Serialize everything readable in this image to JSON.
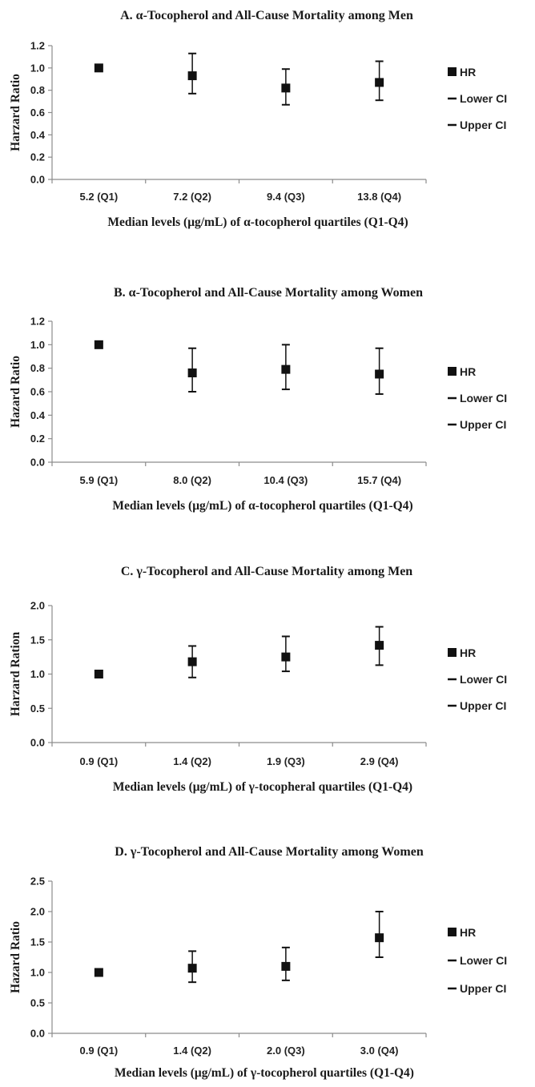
{
  "chart_data": [
    {
      "type": "scatter",
      "title": "A. α-Tocopherol and All-Cause Mortality among Men",
      "xlabel": "Median levels (μg/mL) of α-tocopherol quartiles  (Q1-Q4)",
      "ylabel": "Harzard Ratio",
      "categories": [
        "5.2 (Q1)",
        "7.2 (Q2)",
        "9.4 (Q3)",
        "13.8 (Q4)"
      ],
      "ylim": [
        0,
        1.2
      ],
      "yticks": [
        "0.0",
        "0.2",
        "0.4",
        "0.6",
        "0.8",
        "1.0",
        "1.2"
      ],
      "series": [
        {
          "name": "HR",
          "values": [
            1.0,
            0.93,
            0.82,
            0.87
          ]
        },
        {
          "name": "Lower CI",
          "values": [
            null,
            0.77,
            0.67,
            0.71
          ]
        },
        {
          "name": "Upper CI",
          "values": [
            null,
            1.13,
            0.99,
            1.06
          ]
        }
      ],
      "legend": "right",
      "grid": false
    },
    {
      "type": "scatter",
      "title": "B. α-Tocopherol and All-Cause Mortality among Women",
      "xlabel": "Median levels (μg/mL) of α-tocopherol quartiles  (Q1-Q4)",
      "ylabel": "Hazard Ratio",
      "categories": [
        "5.9 (Q1)",
        "8.0 (Q2)",
        "10.4 (Q3)",
        "15.7 (Q4)"
      ],
      "ylim": [
        0,
        1.2
      ],
      "yticks": [
        "0.0",
        "0.2",
        "0.4",
        "0.6",
        "0.8",
        "1.0",
        "1.2"
      ],
      "series": [
        {
          "name": "HR",
          "values": [
            1.0,
            0.76,
            0.79,
            0.75
          ]
        },
        {
          "name": "Lower CI",
          "values": [
            null,
            0.6,
            0.62,
            0.58
          ]
        },
        {
          "name": "Upper CI",
          "values": [
            null,
            0.97,
            1.0,
            0.97
          ]
        }
      ],
      "legend": "right",
      "grid": false
    },
    {
      "type": "scatter",
      "title": "C. γ-Tocopherol and All-Cause Mortality among Men",
      "xlabel": "Median levels (μg/mL) of γ-tocopheral quartiles  (Q1-Q4)",
      "ylabel": "Harzard Ration",
      "categories": [
        "0.9 (Q1)",
        "1.4 (Q2)",
        "1.9 (Q3)",
        "2.9 (Q4)"
      ],
      "ylim": [
        0,
        2.0
      ],
      "yticks": [
        "0.0",
        "0.5",
        "1.0",
        "1.5",
        "2.0"
      ],
      "series": [
        {
          "name": "HR",
          "values": [
            1.0,
            1.18,
            1.25,
            1.42
          ]
        },
        {
          "name": "Lower CI",
          "values": [
            null,
            0.95,
            1.04,
            1.13
          ]
        },
        {
          "name": "Upper CI",
          "values": [
            null,
            1.41,
            1.55,
            1.69
          ]
        }
      ],
      "legend": "right",
      "grid": false
    },
    {
      "type": "scatter",
      "title": "D. γ-Tocopherol and All-Cause Mortality among Women",
      "xlabel": "Median levels (μg/mL) of γ-tocopherol quartiles  (Q1-Q4)",
      "ylabel": "Hazard Ratio",
      "categories": [
        "0.9 (Q1)",
        "1.4 (Q2)",
        "2.0 (Q3)",
        "3.0 (Q4)"
      ],
      "ylim": [
        0,
        2.5
      ],
      "yticks": [
        "0.0",
        "0.5",
        "1.0",
        "1.5",
        "2.0",
        "2.5"
      ],
      "series": [
        {
          "name": "HR",
          "values": [
            1.0,
            1.07,
            1.1,
            1.57
          ]
        },
        {
          "name": "Lower CI",
          "values": [
            null,
            0.84,
            0.87,
            1.25
          ]
        },
        {
          "name": "Upper CI",
          "values": [
            null,
            1.35,
            1.41,
            2.0
          ]
        }
      ],
      "legend": "right",
      "grid": false
    }
  ],
  "colors": {
    "marker": "#111111",
    "axis": "#8c8c8c",
    "text": "#1a1a1a"
  }
}
